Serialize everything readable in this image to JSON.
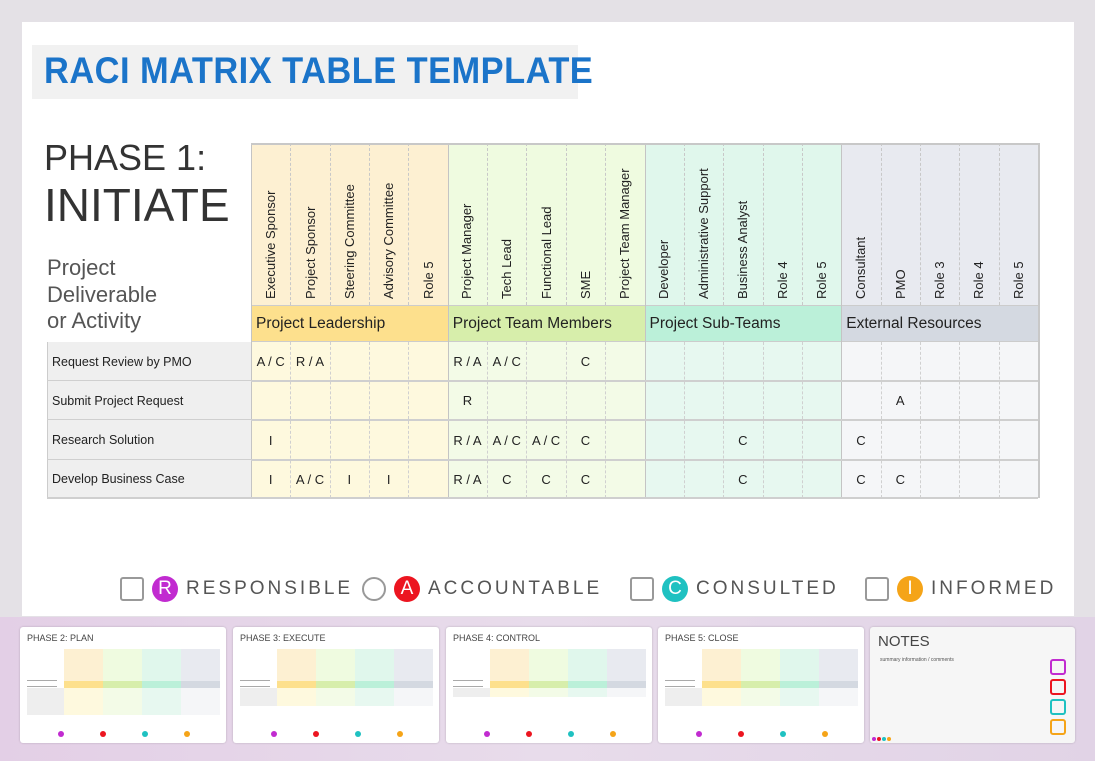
{
  "title": "RACI MATRIX TABLE TEMPLATE",
  "phase": {
    "line1": "PHASE 1:",
    "line2": "INITIATE"
  },
  "deliverable_label": [
    "Project",
    "Deliverable",
    "or Activity"
  ],
  "groups": [
    {
      "name": "Project Leadership",
      "roles": [
        "Executive Sponsor",
        "Project Sponsor",
        "Steering Committee",
        "Advisory Committee",
        "Role 5"
      ],
      "head_color": "#fdf0d2",
      "group_color": "#fde08d",
      "body_color": "#fef9de"
    },
    {
      "name": "Project Team Members",
      "roles": [
        "Project Manager",
        "Tech Lead",
        "Functional Lead",
        "SME",
        "Project Team Manager"
      ],
      "head_color": "#effbe0",
      "group_color": "#d7eeab",
      "body_color": "#f3fbe7"
    },
    {
      "name": "Project Sub-Teams",
      "roles": [
        "Developer",
        "Administrative Support",
        "Business Analyst",
        "Role 4",
        "Role 5"
      ],
      "head_color": "#e0f7ec",
      "group_color": "#bbf0d9",
      "body_color": "#e7f8f0"
    },
    {
      "name": "External Resources",
      "roles": [
        "Consultant",
        "PMO",
        "Role 3",
        "Role 4",
        "Role 5"
      ],
      "head_color": "#e8eaf0",
      "group_color": "#d4d9e1",
      "body_color": "#f5f6f8"
    }
  ],
  "rows": [
    {
      "activity": "Request Review by PMO",
      "cells": [
        "A / C",
        "R / A",
        "",
        "",
        "",
        "R / A",
        "A / C",
        "",
        "C",
        "",
        "",
        "",
        "",
        "",
        "",
        "",
        "",
        "",
        "",
        ""
      ]
    },
    {
      "activity": "Submit Project Request",
      "cells": [
        "",
        "",
        "",
        "",
        "",
        "R",
        "",
        "",
        "",
        "",
        "",
        "",
        "",
        "",
        "",
        "",
        "A",
        "",
        "",
        ""
      ]
    },
    {
      "activity": "Research Solution",
      "cells": [
        "I",
        "",
        "",
        "",
        "",
        "R / A",
        "A / C",
        "A / C",
        "C",
        "",
        "",
        "",
        "C",
        "",
        "",
        "C",
        "",
        "",
        "",
        ""
      ]
    },
    {
      "activity": "Develop Business Case",
      "cells": [
        "I",
        "A / C",
        "I",
        "I",
        "",
        "R / A",
        "C",
        "C",
        "C",
        "",
        "",
        "",
        "C",
        "",
        "",
        "C",
        "C",
        "",
        "",
        ""
      ]
    }
  ],
  "legend": [
    {
      "letter": "R",
      "label": "RESPONSIBLE",
      "color": "#c12bd0",
      "icon": "document-checklist-icon"
    },
    {
      "letter": "A",
      "label": "ACCOUNTABLE",
      "color": "#ec1520",
      "icon": "magnifier-person-icon"
    },
    {
      "letter": "C",
      "label": "CONSULTED",
      "color": "#1fc1c1",
      "icon": "contact-card-download-icon"
    },
    {
      "letter": "I",
      "label": "INFORMED",
      "color": "#f5a418",
      "icon": "contact-card-upload-icon"
    }
  ],
  "thumbnails": [
    {
      "title": "PHASE 2: PLAN",
      "rows": 3
    },
    {
      "title": "PHASE 3: EXECUTE",
      "rows": 2
    },
    {
      "title": "PHASE 4: CONTROL",
      "rows": 1
    },
    {
      "title": "PHASE 5: CLOSE",
      "rows": 2
    }
  ],
  "notes": {
    "title": "NOTES",
    "subtitle": "summary information / comments"
  }
}
